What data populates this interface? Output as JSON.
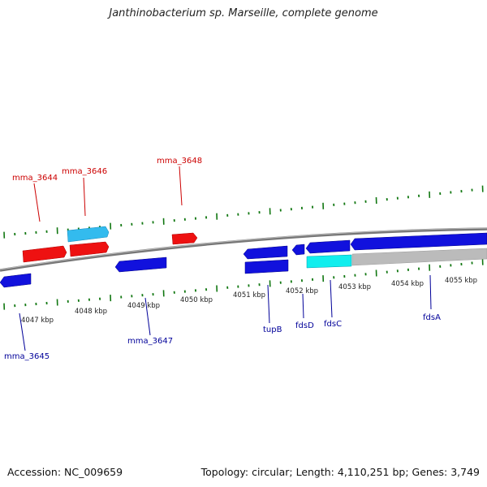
{
  "title": "Janthinobacterium sp. Marseille, complete genome",
  "footer": {
    "accession": "Accession: NC_009659",
    "topology": "Topology: circular; Length: 4,110,251 bp; Genes: 3,749"
  },
  "colors": {
    "forward_gene": "#ee1111",
    "reverse_gene": "#1111dd",
    "forward_rna": "#33bbee",
    "reverse_rna": "#11eeee",
    "grey_feature": "#bbbbbb",
    "backbone": "#888888",
    "tick": "#117711",
    "forward_label": "#cc0000",
    "reverse_label": "#000099"
  },
  "kbp_labels": [
    "4047 kbp",
    "4048 kbp",
    "4049 kbp",
    "4050 kbp",
    "4051 kbp",
    "4052 kbp",
    "4053 kbp",
    "4054 kbp",
    "4055 kbp"
  ],
  "gene_labels": {
    "forward": [
      "mma_3644",
      "mma_3646",
      "mma_3648"
    ],
    "reverse": [
      "mma_3645",
      "mma_3647",
      "tupB",
      "fdsD",
      "fdsC",
      "fdsA"
    ]
  }
}
